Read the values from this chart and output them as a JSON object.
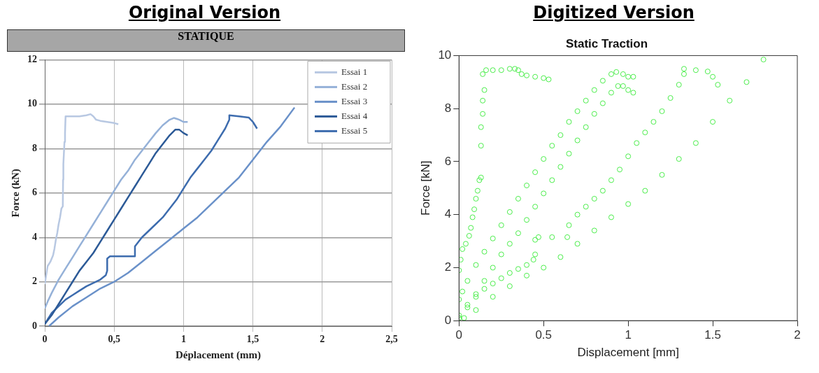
{
  "chart_data": [
    {
      "type": "line",
      "title": "Original Version",
      "subtitle": "STATIQUE",
      "xlabel": "Déplacement (mm)",
      "ylabel": "Force (kN)",
      "xlim": [
        0,
        2.5
      ],
      "xticks": [
        0,
        {
          "value": 0.5,
          "label": "0,5"
        },
        1,
        {
          "value": 1.5,
          "label": "1,5"
        },
        2,
        {
          "value": 2.5,
          "label": "2,5"
        }
      ],
      "ylim": [
        0,
        12
      ],
      "yticks": [
        0,
        2,
        4,
        6,
        8,
        10,
        12
      ],
      "grid": true,
      "legend": "top right",
      "marker": "none",
      "line_style": "solid",
      "series": [
        {
          "name": "Essai 1",
          "color": "#b8c8e2",
          "x": [
            0,
            0.01,
            0.02,
            0.04,
            0.06,
            0.07,
            0.08,
            0.09,
            0.1,
            0.11,
            0.12,
            0.13,
            0.132,
            0.134,
            0.138,
            0.142,
            0.146,
            0.15,
            0.2,
            0.25,
            0.3,
            0.33,
            0.35,
            0.37,
            0.4,
            0.45,
            0.5,
            0.53
          ],
          "values": [
            1.9,
            2.3,
            2.7,
            2.9,
            3.2,
            3.5,
            3.9,
            4.2,
            4.6,
            4.9,
            5.3,
            5.4,
            6.6,
            7.3,
            7.8,
            8.3,
            8.7,
            9.45,
            9.45,
            9.45,
            9.5,
            9.55,
            9.45,
            9.3,
            9.25,
            9.2,
            9.15,
            9.1
          ]
        },
        {
          "name": "Essai 2",
          "color": "#95b1d8",
          "x": [
            0,
            0.02,
            0.05,
            0.1,
            0.15,
            0.2,
            0.25,
            0.3,
            0.35,
            0.4,
            0.45,
            0.5,
            0.55,
            0.6,
            0.65,
            0.7,
            0.75,
            0.8,
            0.85,
            0.9,
            0.93,
            0.97,
            1.0,
            1.03
          ],
          "values": [
            0.8,
            1.1,
            1.5,
            2.1,
            2.6,
            3.1,
            3.6,
            4.1,
            4.6,
            5.1,
            5.6,
            6.1,
            6.6,
            7.0,
            7.5,
            7.9,
            8.3,
            8.7,
            9.05,
            9.3,
            9.38,
            9.3,
            9.2,
            9.2
          ]
        },
        {
          "name": "Essai 3",
          "color": "#6a91c9",
          "x": [
            0.03,
            0.1,
            0.2,
            0.3,
            0.4,
            0.5,
            0.6,
            0.7,
            0.8,
            0.9,
            1.0,
            1.1,
            1.2,
            1.3,
            1.4,
            1.5,
            1.6,
            1.7,
            1.8
          ],
          "values": [
            0,
            0.4,
            0.9,
            1.3,
            1.7,
            2.0,
            2.4,
            2.9,
            3.4,
            3.9,
            4.4,
            4.9,
            5.5,
            6.1,
            6.7,
            7.5,
            8.3,
            9.0,
            9.85
          ]
        },
        {
          "name": "Essai 4",
          "color": "#2c5a97",
          "x": [
            0,
            0.05,
            0.1,
            0.15,
            0.2,
            0.25,
            0.3,
            0.35,
            0.4,
            0.45,
            0.5,
            0.55,
            0.6,
            0.65,
            0.7,
            0.75,
            0.8,
            0.85,
            0.9,
            0.94,
            0.97,
            1.0,
            1.03
          ],
          "values": [
            0.1,
            0.5,
            1.0,
            1.5,
            2.0,
            2.5,
            2.9,
            3.3,
            3.8,
            4.3,
            4.8,
            5.3,
            5.8,
            6.3,
            6.8,
            7.3,
            7.8,
            8.2,
            8.6,
            8.85,
            8.85,
            8.7,
            8.6
          ]
        },
        {
          "name": "Essai 5",
          "color": "#3d6cae",
          "x": [
            0,
            0.05,
            0.1,
            0.15,
            0.2,
            0.25,
            0.3,
            0.35,
            0.4,
            0.44,
            0.45,
            0.45,
            0.47,
            0.55,
            0.65,
            0.65,
            0.7,
            0.75,
            0.8,
            0.85,
            0.9,
            0.95,
            1.0,
            1.05,
            1.1,
            1.15,
            1.2,
            1.25,
            1.3,
            1.33,
            1.33,
            1.4,
            1.47,
            1.5,
            1.53
          ],
          "values": [
            0.1,
            0.6,
            0.9,
            1.2,
            1.4,
            1.6,
            1.8,
            1.95,
            2.1,
            2.3,
            2.5,
            3.05,
            3.15,
            3.15,
            3.15,
            3.6,
            4.0,
            4.3,
            4.6,
            4.9,
            5.3,
            5.7,
            6.2,
            6.7,
            7.1,
            7.5,
            7.9,
            8.4,
            8.9,
            9.3,
            9.5,
            9.45,
            9.4,
            9.2,
            8.9
          ]
        }
      ]
    },
    {
      "type": "scatter",
      "title": "Digitized Version",
      "subtitle": "Static Traction",
      "xlabel": "Displacement [mm]",
      "ylabel": "Force [kN]",
      "xlim": [
        0,
        2
      ],
      "xticks": [
        0,
        0.5,
        1,
        1.5,
        2
      ],
      "ylim": [
        0,
        10
      ],
      "yticks": [
        0,
        2,
        4,
        6,
        8,
        10
      ],
      "grid": false,
      "marker": "circle",
      "series": [
        {
          "color": "#4cee4c",
          "x": [
            0,
            0.01,
            0.02,
            0.04,
            0.06,
            0.07,
            0.08,
            0.09,
            0.1,
            0.11,
            0.12,
            0.13,
            0.13,
            0.13,
            0.14,
            0.14,
            0.15,
            0.14,
            0.16,
            0.2,
            0.25,
            0.3,
            0.33,
            0.35,
            0.37,
            0.4,
            0.45,
            0.5,
            0.53
          ],
          "values": [
            1.9,
            2.3,
            2.7,
            2.9,
            3.2,
            3.5,
            3.9,
            4.2,
            4.6,
            4.9,
            5.3,
            5.4,
            6.6,
            7.3,
            7.8,
            8.3,
            8.7,
            9.3,
            9.45,
            9.45,
            9.45,
            9.5,
            9.5,
            9.45,
            9.3,
            9.25,
            9.2,
            9.15,
            9.1
          ]
        },
        {
          "color": "#4cee4c",
          "x": [
            0,
            0.02,
            0.05,
            0.1,
            0.15,
            0.2,
            0.25,
            0.3,
            0.35,
            0.4,
            0.45,
            0.5,
            0.55,
            0.6,
            0.65,
            0.7,
            0.75,
            0.8,
            0.85,
            0.9,
            0.93,
            0.97,
            1.0,
            1.03
          ],
          "values": [
            0.8,
            1.1,
            1.5,
            2.1,
            2.6,
            3.1,
            3.6,
            4.1,
            4.6,
            5.1,
            5.6,
            6.1,
            6.6,
            7.0,
            7.5,
            7.9,
            8.3,
            8.7,
            9.05,
            9.3,
            9.38,
            9.3,
            9.2,
            9.2
          ]
        },
        {
          "color": "#4cee4c",
          "x": [
            0.03,
            0.1,
            0.2,
            0.3,
            0.4,
            0.5,
            0.6,
            0.7,
            0.8,
            0.9,
            1.0,
            1.1,
            1.2,
            1.3,
            1.4,
            1.5,
            1.6,
            1.7,
            1.8
          ],
          "values": [
            0.1,
            0.4,
            0.9,
            1.3,
            1.7,
            2.0,
            2.4,
            2.9,
            3.4,
            3.9,
            4.4,
            4.9,
            5.5,
            6.1,
            6.7,
            7.5,
            8.3,
            9.0,
            9.85
          ]
        },
        {
          "color": "#4cee4c",
          "x": [
            0,
            0.05,
            0.1,
            0.15,
            0.2,
            0.25,
            0.3,
            0.35,
            0.4,
            0.45,
            0.5,
            0.55,
            0.6,
            0.65,
            0.7,
            0.75,
            0.8,
            0.85,
            0.9,
            0.94,
            0.97,
            1.0,
            1.03
          ],
          "values": [
            0.1,
            0.5,
            1.0,
            1.5,
            2.0,
            2.5,
            2.9,
            3.3,
            3.8,
            4.3,
            4.8,
            5.3,
            5.8,
            6.3,
            6.8,
            7.3,
            7.8,
            8.2,
            8.6,
            8.85,
            8.85,
            8.7,
            8.6
          ]
        },
        {
          "color": "#4cee4c",
          "x": [
            0,
            0.05,
            0.1,
            0.15,
            0.2,
            0.25,
            0.3,
            0.35,
            0.4,
            0.44,
            0.45,
            0.45,
            0.47,
            0.55,
            0.64,
            0.65,
            0.7,
            0.75,
            0.8,
            0.85,
            0.9,
            0.95,
            1.0,
            1.05,
            1.1,
            1.15,
            1.2,
            1.25,
            1.3,
            1.33,
            1.33,
            1.4,
            1.47,
            1.5,
            1.53
          ],
          "values": [
            0.2,
            0.6,
            0.9,
            1.2,
            1.4,
            1.6,
            1.8,
            1.95,
            2.1,
            2.3,
            2.5,
            3.05,
            3.15,
            3.15,
            3.15,
            3.6,
            4.0,
            4.3,
            4.6,
            4.9,
            5.3,
            5.7,
            6.2,
            6.7,
            7.1,
            7.5,
            7.9,
            8.4,
            8.9,
            9.3,
            9.5,
            9.45,
            9.4,
            9.2,
            8.9
          ]
        }
      ]
    }
  ]
}
